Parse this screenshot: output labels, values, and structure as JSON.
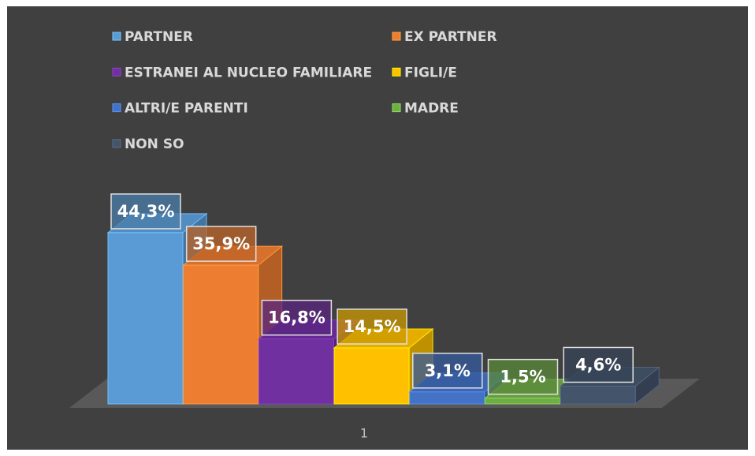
{
  "chart_data": {
    "type": "bar",
    "categories": [
      "1"
    ],
    "legend": "top",
    "series": [
      {
        "name": "PARTNER",
        "color": "#5b9bd5",
        "values": [
          44.3
        ],
        "value_labels": [
          "44,3%"
        ]
      },
      {
        "name": "EX PARTNER",
        "color": "#ed7d31",
        "values": [
          35.9
        ],
        "value_labels": [
          "35,9%"
        ]
      },
      {
        "name": "ESTRANEI AL NUCLEO FAMILIARE",
        "color": "#7030a0",
        "values": [
          16.8
        ],
        "value_labels": [
          "16,8%"
        ]
      },
      {
        "name": "FIGLI/E",
        "color": "#ffc000",
        "values": [
          14.5
        ],
        "value_labels": [
          "14,5%"
        ]
      },
      {
        "name": "ALTRI/E PARENTI",
        "color": "#4472c4",
        "values": [
          3.1
        ],
        "value_labels": [
          "3,1%"
        ]
      },
      {
        "name": "MADRE",
        "color": "#70ad47",
        "values": [
          1.5
        ],
        "value_labels": [
          "1,5%"
        ]
      },
      {
        "name": "NON SO",
        "color": "#44546a",
        "values": [
          4.6
        ],
        "value_labels": [
          "4,6%"
        ]
      }
    ]
  }
}
